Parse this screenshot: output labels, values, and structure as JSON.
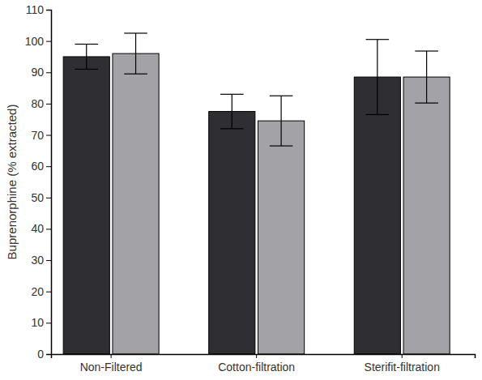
{
  "chart_data": {
    "type": "bar",
    "y_label": "Buprenorphine (% extracted)",
    "categories": [
      "Non-Filtered",
      "Cotton-filtration",
      "Sterifit-filtration"
    ],
    "series": [
      {
        "color": "#2e2e33",
        "values": [
          95,
          77.5,
          88.5
        ],
        "errors": [
          4,
          5.5,
          12
        ]
      },
      {
        "color": "#a3a3a7",
        "values": [
          96,
          74.5,
          88.5
        ],
        "errors": [
          6.5,
          8,
          8.3
        ]
      }
    ],
    "ylim": [
      0,
      110
    ],
    "yticks": [
      0,
      10,
      20,
      30,
      40,
      50,
      60,
      70,
      80,
      90,
      100,
      110
    ]
  }
}
